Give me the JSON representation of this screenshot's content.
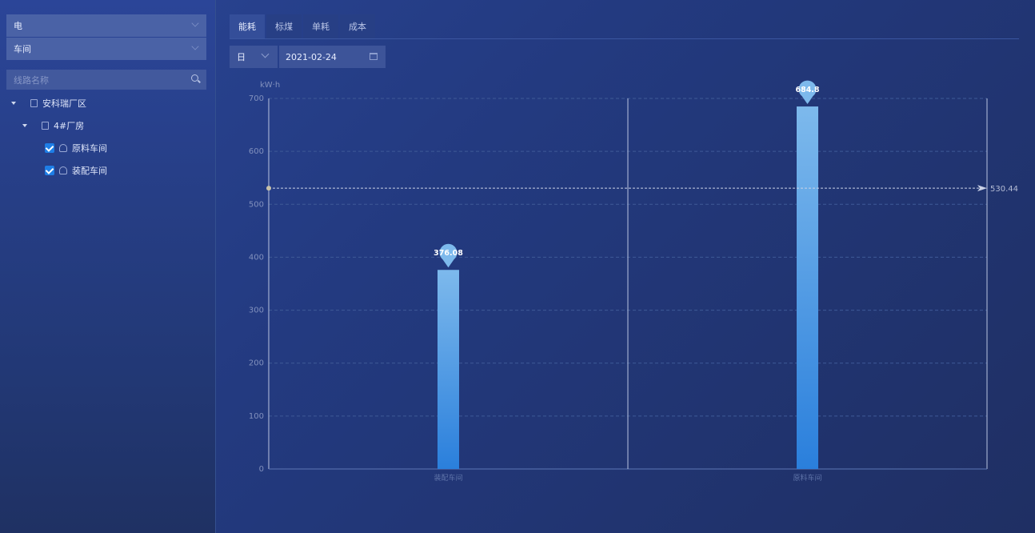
{
  "sidebar": {
    "energy_select": "电",
    "level_select": "车间",
    "search_placeholder": "线路名称",
    "tree": {
      "root": "安科瑞厂区",
      "child": "4#厂房",
      "leaves": [
        {
          "label": "原料车间",
          "checked": true
        },
        {
          "label": "装配车间",
          "checked": true
        }
      ]
    }
  },
  "tabs": [
    {
      "label": "能耗",
      "active": true
    },
    {
      "label": "标煤"
    },
    {
      "label": "单耗"
    },
    {
      "label": "成本"
    }
  ],
  "filters": {
    "period": "日",
    "date": "2021-02-24"
  },
  "chart_data": {
    "type": "bar",
    "ylabel": "kW·h",
    "ylim": [
      0,
      700
    ],
    "yticks": [
      0,
      100,
      200,
      300,
      400,
      500,
      600,
      700
    ],
    "categories": [
      "装配车间",
      "原料车间"
    ],
    "values": [
      376.08,
      684.8
    ],
    "average_line": 530.44,
    "grid": true,
    "bar_color_top": "#7db9ec",
    "bar_color_bottom": "#2a7fdc"
  }
}
